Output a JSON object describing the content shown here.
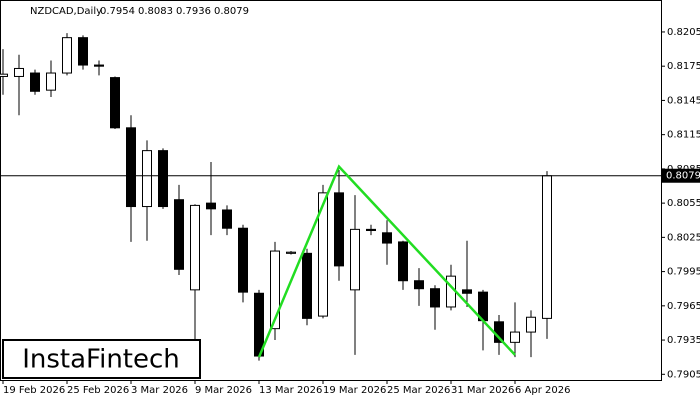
{
  "chart_data": {
    "type": "candlestick",
    "title": "NZDCAD,Daily",
    "header_values": [
      0.7954,
      0.8083,
      0.7936,
      0.8079
    ],
    "logo": "InstaFintech",
    "categories": [
      "19 Feb 2026",
      null,
      null,
      null,
      "25 Feb 2026",
      null,
      null,
      null,
      "3 Mar 2026",
      null,
      null,
      null,
      "9 Mar 2026",
      null,
      null,
      null,
      "13 Mar 2026",
      null,
      null,
      null,
      "19 Mar 2026",
      null,
      null,
      null,
      "25 Mar 2026",
      null,
      null,
      null,
      "31 Mar 2026",
      null,
      null,
      null,
      "6 Apr 2026",
      null,
      null
    ],
    "open": [
      0.8166,
      0.8166,
      0.8169,
      0.8154,
      0.8169,
      0.82,
      0.8176,
      0.8165,
      0.8121,
      0.8052,
      0.8101,
      0.8058,
      0.7979,
      0.8055,
      0.8049,
      0.8033,
      0.7976,
      0.7945,
      0.8011,
      0.8011,
      0.7956,
      0.8064,
      0.7979,
      0.8032,
      0.8029,
      0.8021,
      0.7987,
      0.798,
      0.7964,
      0.7979,
      0.7977,
      0.7951,
      0.7933,
      0.7942,
      0.7954
    ],
    "high": [
      0.819,
      0.8185,
      0.8172,
      0.818,
      0.8204,
      0.8202,
      0.818,
      0.8166,
      0.8132,
      0.811,
      0.8103,
      0.8071,
      0.8054,
      0.8091,
      0.8053,
      0.8036,
      0.7979,
      0.8021,
      0.8013,
      0.8015,
      0.8071,
      0.8084,
      0.8062,
      0.8036,
      0.804,
      0.8022,
      0.7998,
      0.7983,
      0.8001,
      0.8022,
      0.7979,
      0.7957,
      0.7968,
      0.7961,
      0.8083
    ],
    "low": [
      0.815,
      0.8132,
      0.815,
      0.8148,
      0.8167,
      0.8172,
      0.8167,
      0.812,
      0.8021,
      0.8022,
      0.805,
      0.7992,
      0.7935,
      0.8027,
      0.8027,
      0.7968,
      0.7917,
      0.7935,
      0.801,
      0.7948,
      0.7954,
      0.7987,
      0.7922,
      0.8027,
      0.8001,
      0.7979,
      0.7965,
      0.7944,
      0.7961,
      0.7964,
      0.7926,
      0.7922,
      0.792,
      0.792,
      0.7936
    ],
    "close": [
      0.8168,
      0.8173,
      0.8153,
      0.8169,
      0.82,
      0.8176,
      0.8175,
      0.8121,
      0.8052,
      0.8101,
      0.8052,
      0.7997,
      0.8053,
      0.805,
      0.8033,
      0.7977,
      0.7921,
      0.8013,
      0.8012,
      0.7954,
      0.8064,
      0.8,
      0.8032,
      0.8031,
      0.802,
      0.7987,
      0.798,
      0.7964,
      0.7991,
      0.7976,
      0.7952,
      0.7933,
      0.7942,
      0.7955,
      0.8079
    ],
    "up_color": "#ffffff",
    "down_color": "#000000",
    "price_line": 0.8079,
    "pattern": {
      "x": [
        16,
        21,
        32
      ],
      "values": [
        0.792,
        0.8087,
        0.7922
      ],
      "color": "#22dd22"
    },
    "ylim": [
      0.79,
      0.8233
    ],
    "yticks": [
      0.8205,
      0.8175,
      0.8145,
      0.8115,
      0.8085,
      0.8055,
      0.8025,
      0.7995,
      0.7965,
      0.7935,
      0.7905
    ]
  }
}
